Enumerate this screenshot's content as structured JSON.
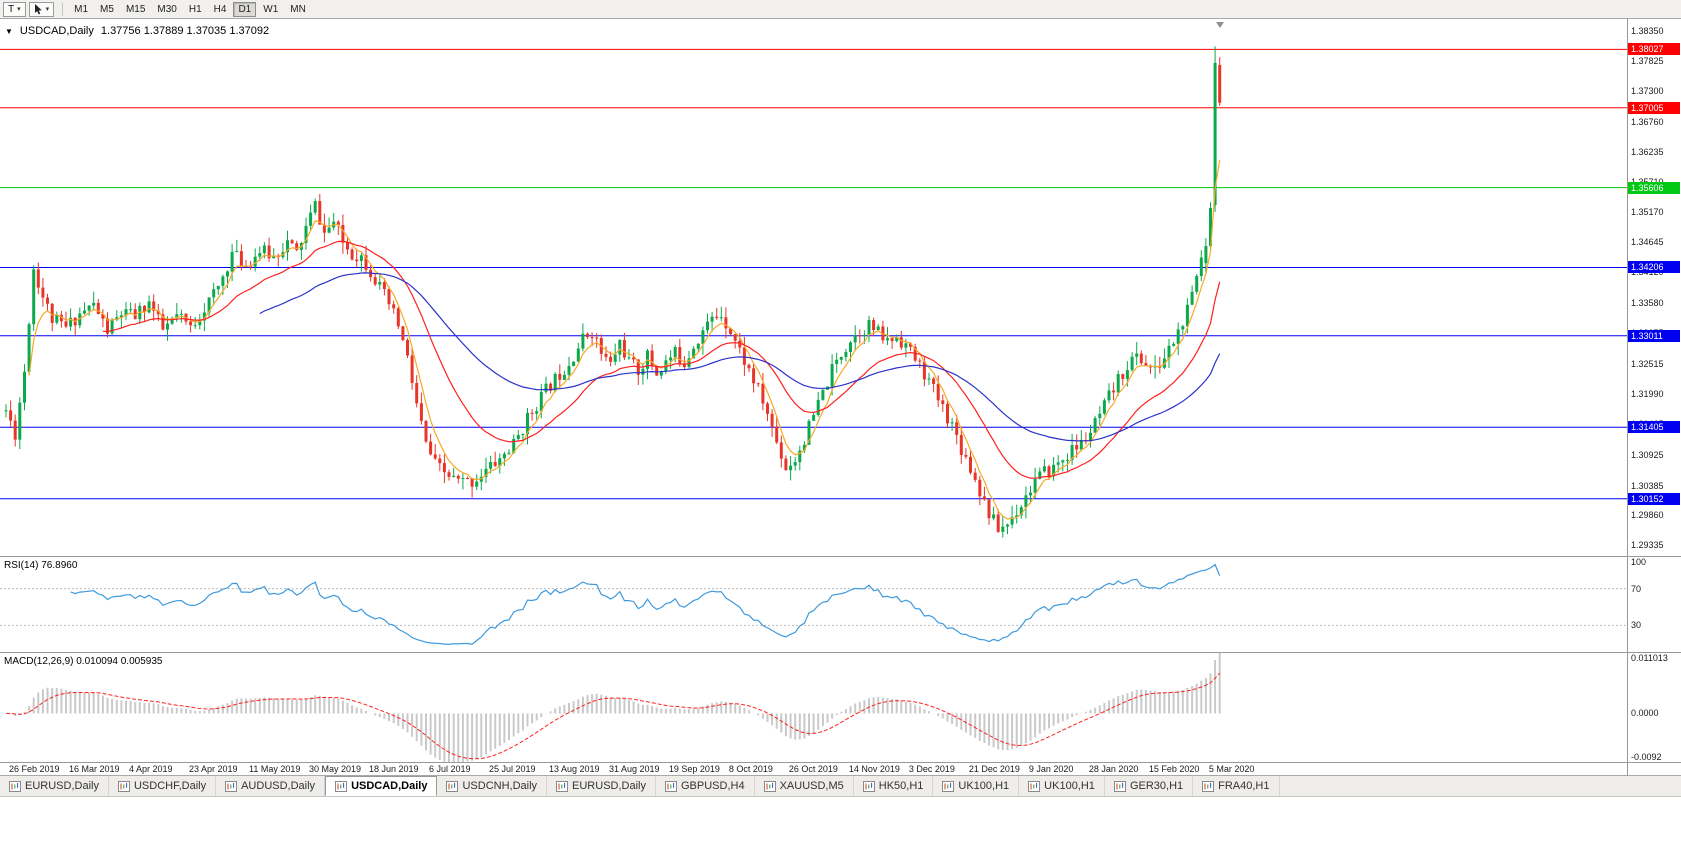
{
  "toolbar": {
    "text_tool_label": "T",
    "dropdown_icon": "▾",
    "timeframes": [
      "M1",
      "M5",
      "M15",
      "M30",
      "H1",
      "H4",
      "D1",
      "W1",
      "MN"
    ],
    "active_timeframe": "D1"
  },
  "chart": {
    "one_click_icon": "▼",
    "symbol_title": "USDCAD,Daily",
    "ohlc": "1.37756 1.37889 1.37035 1.37092",
    "colors": {
      "bull": "#0BA94C",
      "bear": "#E8352A",
      "hline_red": "#FF0000",
      "hline_green": "#00C813",
      "hline_blue": "#0000F0"
    },
    "price_axis_ticks": [
      "1.38350",
      "1.37825",
      "1.37300",
      "1.36760",
      "1.36235",
      "1.35710",
      "1.35170",
      "1.34645",
      "1.34120",
      "1.33580",
      "1.33055",
      "1.32515",
      "1.31990",
      "1.31465",
      "1.30925",
      "1.30385",
      "1.29860",
      "1.29335"
    ],
    "hlines": [
      {
        "price": 1.38027,
        "label": "1.38027",
        "color": "#FF0000"
      },
      {
        "price": 1.37005,
        "label": "1.37005",
        "color": "#FF0000"
      },
      {
        "price": 1.35606,
        "label": "1.35606",
        "color": "#00C813"
      },
      {
        "price": 1.34206,
        "label": "1.34206",
        "color": "#0000F0"
      },
      {
        "price": 1.33011,
        "label": "1.33011",
        "color": "#0000F0"
      },
      {
        "price": 1.31405,
        "label": "1.31405",
        "color": "#0000F0"
      },
      {
        "price": 1.30152,
        "label": "1.30152",
        "color": "#0000F0"
      }
    ],
    "moving_averages": [
      {
        "period": 5,
        "color": "#F7A928"
      },
      {
        "period": 21,
        "color": "#FF2020"
      },
      {
        "period": 55,
        "color": "#2B32C8"
      }
    ],
    "candle_count": 264,
    "seed": 11,
    "price_path": [
      [
        0,
        1.317
      ],
      [
        2,
        1.313
      ],
      [
        4,
        1.324
      ],
      [
        6,
        1.342
      ],
      [
        8,
        1.337
      ],
      [
        10,
        1.333
      ],
      [
        13,
        1.3315
      ],
      [
        16,
        1.334
      ],
      [
        19,
        1.3355
      ],
      [
        22,
        1.331
      ],
      [
        25,
        1.334
      ],
      [
        28,
        1.3335
      ],
      [
        31,
        1.336
      ],
      [
        34,
        1.331
      ],
      [
        37,
        1.3335
      ],
      [
        40,
        1.3315
      ],
      [
        43,
        1.335
      ],
      [
        46,
        1.3385
      ],
      [
        49,
        1.3445
      ],
      [
        52,
        1.3425
      ],
      [
        55,
        1.345
      ],
      [
        58,
        1.344
      ],
      [
        61,
        1.3465
      ],
      [
        63,
        1.3445
      ],
      [
        65,
        1.349
      ],
      [
        67,
        1.353
      ],
      [
        69,
        1.348
      ],
      [
        71,
        1.35
      ],
      [
        73,
        1.3465
      ],
      [
        75,
        1.3445
      ],
      [
        77,
        1.344
      ],
      [
        79,
        1.3415
      ],
      [
        81,
        1.3385
      ],
      [
        83,
        1.3355
      ],
      [
        85,
        1.332
      ],
      [
        87,
        1.326
      ],
      [
        89,
        1.318
      ],
      [
        91,
        1.311
      ],
      [
        93,
        1.3075
      ],
      [
        95,
        1.306
      ],
      [
        98,
        1.3045
      ],
      [
        101,
        1.3045
      ],
      [
        104,
        1.3065
      ],
      [
        107,
        1.3085
      ],
      [
        110,
        1.311
      ],
      [
        113,
        1.3155
      ],
      [
        116,
        1.3195
      ],
      [
        119,
        1.3225
      ],
      [
        122,
        1.3255
      ],
      [
        125,
        1.3295
      ],
      [
        127,
        1.331
      ],
      [
        129,
        1.327
      ],
      [
        131,
        1.325
      ],
      [
        133,
        1.329
      ],
      [
        135,
        1.3255
      ],
      [
        137,
        1.324
      ],
      [
        139,
        1.3265
      ],
      [
        141,
        1.3235
      ],
      [
        143,
        1.3255
      ],
      [
        145,
        1.327
      ],
      [
        147,
        1.3255
      ],
      [
        149,
        1.3285
      ],
      [
        151,
        1.331
      ],
      [
        153,
        1.333
      ],
      [
        155,
        1.334
      ],
      [
        157,
        1.331
      ],
      [
        159,
        1.3275
      ],
      [
        161,
        1.324
      ],
      [
        163,
        1.3205
      ],
      [
        165,
        1.3165
      ],
      [
        167,
        1.3115
      ],
      [
        169,
        1.307
      ],
      [
        171,
        1.3085
      ],
      [
        173,
        1.312
      ],
      [
        175,
        1.316
      ],
      [
        177,
        1.32
      ],
      [
        179,
        1.324
      ],
      [
        181,
        1.327
      ],
      [
        183,
        1.3295
      ],
      [
        185,
        1.331
      ],
      [
        187,
        1.332
      ],
      [
        189,
        1.3305
      ],
      [
        191,
        1.329
      ],
      [
        193,
        1.33
      ],
      [
        195,
        1.3285
      ],
      [
        197,
        1.326
      ],
      [
        199,
        1.3235
      ],
      [
        201,
        1.3205
      ],
      [
        203,
        1.3175
      ],
      [
        205,
        1.3145
      ],
      [
        207,
        1.3105
      ],
      [
        209,
        1.307
      ],
      [
        211,
        1.303
      ],
      [
        213,
        1.299
      ],
      [
        215,
        1.2962
      ],
      [
        217,
        1.2972
      ],
      [
        219,
        1.2995
      ],
      [
        221,
        1.302
      ],
      [
        223,
        1.3048
      ],
      [
        225,
        1.306
      ],
      [
        227,
        1.307
      ],
      [
        229,
        1.3085
      ],
      [
        231,
        1.31
      ],
      [
        233,
        1.3112
      ],
      [
        235,
        1.3132
      ],
      [
        237,
        1.316
      ],
      [
        239,
        1.3192
      ],
      [
        241,
        1.3222
      ],
      [
        243,
        1.325
      ],
      [
        245,
        1.3265
      ],
      [
        247,
        1.3252
      ],
      [
        249,
        1.3238
      ],
      [
        251,
        1.3262
      ],
      [
        253,
        1.3292
      ],
      [
        255,
        1.3322
      ],
      [
        257,
        1.3368
      ],
      [
        258,
        1.3405
      ],
      [
        259,
        1.3438
      ],
      [
        263,
        1.3709
      ]
    ],
    "last_candles": [
      [
        1.3428,
        1.3472,
        1.3408,
        1.3458
      ],
      [
        1.3458,
        1.3535,
        1.3448,
        1.3525
      ],
      [
        1.353,
        1.3808,
        1.3518,
        1.3779
      ],
      [
        1.37756,
        1.37889,
        1.37035,
        1.37092
      ]
    ]
  },
  "rsi": {
    "label": "RSI(14)",
    "value": "76.8960",
    "period": 14,
    "levels": [
      "100",
      "70",
      "30"
    ],
    "line_color": "#3E9ADE"
  },
  "macd": {
    "label": "MACD(12,26,9)",
    "values": "0.010094 0.005935",
    "axis_labels": [
      "0.011013",
      "0.0000",
      "-0.0092"
    ],
    "histogram_color": "#C9C9C9",
    "signal_color": "#FF2020"
  },
  "date_axis": [
    "26 Feb 2019",
    "16 Mar 2019",
    "4 Apr 2019",
    "23 Apr 2019",
    "11 May 2019",
    "30 May 2019",
    "18 Jun 2019",
    "6 Jul 2019",
    "25 Jul 2019",
    "13 Aug 2019",
    "31 Aug 2019",
    "19 Sep 2019",
    "8 Oct 2019",
    "26 Oct 2019",
    "14 Nov 2019",
    "3 Dec 2019",
    "21 Dec 2019",
    "9 Jan 2020",
    "28 Jan 2020",
    "15 Feb 2020",
    "5 Mar 2020"
  ],
  "tabs": {
    "items": [
      "EURUSD,Daily",
      "USDCHF,Daily",
      "AUDUSD,Daily",
      "USDCAD,Daily",
      "USDCNH,Daily",
      "EURUSD,Daily",
      "GBPUSD,H4",
      "XAUUSD,M5",
      "HK50,H1",
      "UK100,H1",
      "UK100,H1",
      "GER30,H1",
      "FRA40,H1"
    ],
    "active_index": 3
  }
}
